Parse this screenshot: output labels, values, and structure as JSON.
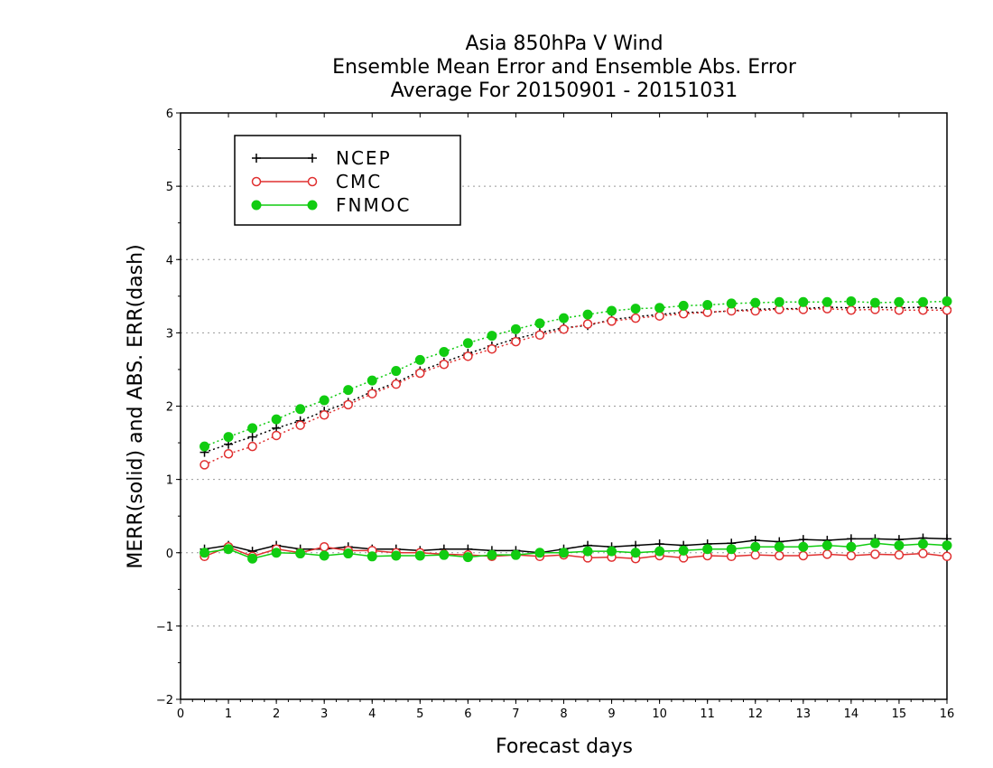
{
  "title": {
    "line1": "Asia 850hPa V Wind",
    "line2": "Ensemble Mean Error and Ensemble Abs. Error",
    "line3": "Average For 20150901 - 20151031"
  },
  "chart_data": {
    "type": "line",
    "xlabel": "Forecast days",
    "ylabel": "MERR(solid) and ABS. ERR(dash)",
    "xlim": [
      0,
      16
    ],
    "ylim": [
      -2,
      6
    ],
    "xticks": [
      0,
      1,
      2,
      3,
      4,
      5,
      6,
      7,
      8,
      9,
      10,
      11,
      12,
      13,
      14,
      15,
      16
    ],
    "yticks": [
      -2,
      -1,
      0,
      1,
      2,
      3,
      4,
      5,
      6
    ],
    "ytick_labels": [
      "−2",
      "−1",
      "0",
      "1",
      "2",
      "3",
      "4",
      "5",
      "6"
    ],
    "grid": "horizontal dotted",
    "legend_position": "top-left",
    "x": [
      0.5,
      1,
      1.5,
      2,
      2.5,
      3,
      3.5,
      4,
      4.5,
      5,
      5.5,
      6,
      6.5,
      7,
      7.5,
      8,
      8.5,
      9,
      9.5,
      10,
      10.5,
      11,
      11.5,
      12,
      12.5,
      13,
      13.5,
      14,
      14.5,
      15,
      15.5,
      16
    ],
    "series": [
      {
        "name": "NCEP",
        "color": "#000000",
        "marker": "plus",
        "merr": [
          0.05,
          0.1,
          0.02,
          0.1,
          0.05,
          0.05,
          0.08,
          0.05,
          0.05,
          0.03,
          0.05,
          0.05,
          0.03,
          0.03,
          0.0,
          0.05,
          0.1,
          0.08,
          0.1,
          0.12,
          0.1,
          0.12,
          0.13,
          0.17,
          0.15,
          0.18,
          0.17,
          0.19,
          0.19,
          0.18,
          0.2,
          0.19
        ],
        "abs_err": [
          1.37,
          1.48,
          1.58,
          1.7,
          1.8,
          1.93,
          2.05,
          2.2,
          2.32,
          2.48,
          2.6,
          2.72,
          2.82,
          2.92,
          3.0,
          3.07,
          3.1,
          3.18,
          3.22,
          3.25,
          3.28,
          3.28,
          3.3,
          3.32,
          3.33,
          3.33,
          3.35,
          3.34,
          3.35,
          3.34,
          3.35,
          3.33
        ]
      },
      {
        "name": "CMC",
        "color": "#e03030",
        "marker": "open-circle",
        "merr": [
          -0.05,
          0.08,
          -0.05,
          0.05,
          0.0,
          0.08,
          0.03,
          0.03,
          0.0,
          0.0,
          -0.02,
          -0.03,
          -0.05,
          -0.03,
          -0.05,
          -0.03,
          -0.07,
          -0.06,
          -0.08,
          -0.04,
          -0.07,
          -0.04,
          -0.05,
          -0.03,
          -0.04,
          -0.04,
          -0.02,
          -0.04,
          -0.02,
          -0.03,
          -0.01,
          -0.05
        ],
        "abs_err": [
          1.2,
          1.35,
          1.45,
          1.6,
          1.74,
          1.88,
          2.02,
          2.17,
          2.3,
          2.45,
          2.57,
          2.68,
          2.78,
          2.88,
          2.97,
          3.05,
          3.12,
          3.16,
          3.2,
          3.23,
          3.26,
          3.28,
          3.3,
          3.3,
          3.32,
          3.32,
          3.33,
          3.31,
          3.32,
          3.31,
          3.31,
          3.31
        ]
      },
      {
        "name": "FNMOC",
        "color": "#11cc11",
        "marker": "filled-circle",
        "merr": [
          0.0,
          0.05,
          -0.08,
          0.0,
          -0.01,
          -0.04,
          -0.01,
          -0.05,
          -0.04,
          -0.04,
          -0.03,
          -0.06,
          -0.03,
          -0.03,
          0.0,
          0.0,
          0.02,
          0.02,
          0.0,
          0.02,
          0.03,
          0.05,
          0.05,
          0.08,
          0.08,
          0.08,
          0.1,
          0.08,
          0.13,
          0.1,
          0.12,
          0.1
        ],
        "abs_err": [
          1.45,
          1.58,
          1.7,
          1.82,
          1.96,
          2.08,
          2.22,
          2.35,
          2.48,
          2.63,
          2.74,
          2.86,
          2.96,
          3.05,
          3.13,
          3.2,
          3.25,
          3.3,
          3.33,
          3.34,
          3.37,
          3.38,
          3.4,
          3.41,
          3.42,
          3.42,
          3.42,
          3.43,
          3.41,
          3.42,
          3.42,
          3.43
        ]
      }
    ]
  }
}
